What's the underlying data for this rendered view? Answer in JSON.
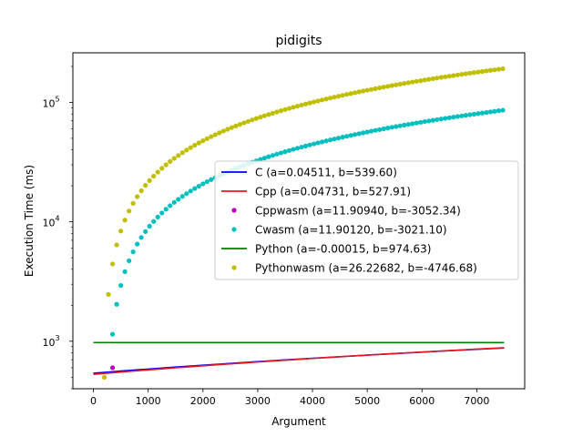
{
  "chart_data": {
    "type": "scatter",
    "title": "pidigits",
    "xlabel": "Argument",
    "ylabel": "Execution Time (ms)",
    "xlim": [
      -375,
      7875
    ],
    "ylim": [
      400,
      260000
    ],
    "yscale": "log",
    "x_ticks": [
      {
        "value": 0,
        "label": "0"
      },
      {
        "value": 1000,
        "label": "1000"
      },
      {
        "value": 2000,
        "label": "2000"
      },
      {
        "value": 3000,
        "label": "3000"
      },
      {
        "value": 4000,
        "label": "4000"
      },
      {
        "value": 5000,
        "label": "5000"
      },
      {
        "value": 6000,
        "label": "6000"
      },
      {
        "value": 7000,
        "label": "7000"
      }
    ],
    "y_ticks": [
      {
        "value": 1000,
        "base": "10",
        "exp": "3"
      },
      {
        "value": 10000,
        "base": "10",
        "exp": "4"
      },
      {
        "value": 100000,
        "base": "10",
        "exp": "5"
      }
    ],
    "legend": {
      "placement": "center-right"
    },
    "grid": false,
    "series": [
      {
        "name": "C (a=0.04511, b=539.60)",
        "kind": "line",
        "color": "#0000ff",
        "a": 0.04511,
        "b": 539.6,
        "x_range": [
          0,
          7500
        ]
      },
      {
        "name": "Cpp (a=0.04731, b=527.91)",
        "kind": "line",
        "color": "#e41a1c",
        "a": 0.04731,
        "b": 527.91,
        "x_range": [
          0,
          7500
        ]
      },
      {
        "name": "Cppwasm (a=11.90940, b=-3052.34)",
        "kind": "points",
        "color": "#bf00bf",
        "points": [
          [
            350,
            600
          ]
        ]
      },
      {
        "name": "Cwasm (a=11.90120, b=-3021.10)",
        "kind": "points",
        "color": "#00bfbf",
        "a": 11.9012,
        "b": -3021.1,
        "x_start": 350,
        "x_end": 7500,
        "x_step": 75
      },
      {
        "name": "Python (a=-0.00015, b=974.63)",
        "kind": "line",
        "color": "#008000",
        "a": -0.00015,
        "b": 974.63,
        "x_range": [
          0,
          7500
        ]
      },
      {
        "name": "Pythonwasm (a=26.22682, b=-4746.68)",
        "kind": "points",
        "color": "#bfbf00",
        "a": 26.22682,
        "b": -4746.68,
        "x_start": 200,
        "x_end": 7500,
        "x_step": 75
      }
    ]
  }
}
